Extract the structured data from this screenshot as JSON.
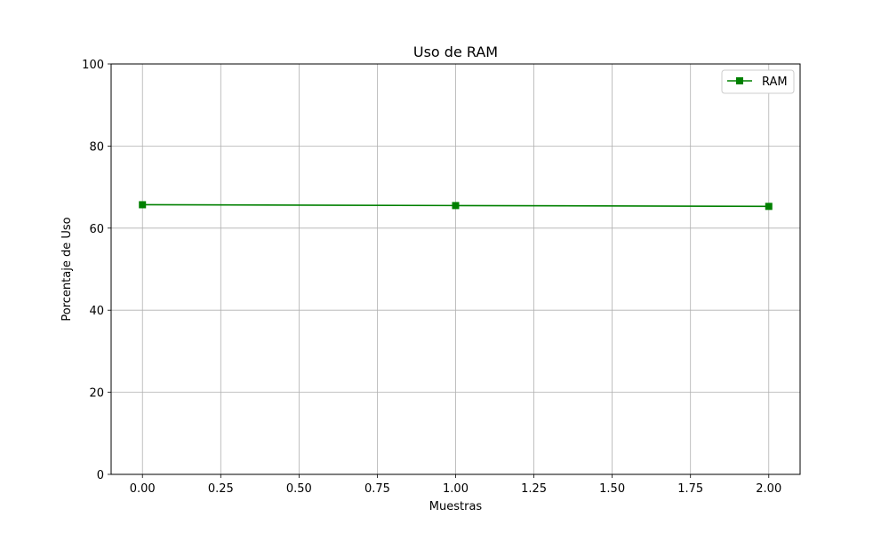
{
  "chart_data": {
    "type": "line",
    "title": "Uso de RAM",
    "xlabel": "Muestras",
    "ylabel": "Porcentaje de Uso",
    "xlim": [
      -0.1,
      2.1
    ],
    "ylim": [
      0,
      100
    ],
    "xticks": [
      "0.00",
      "0.25",
      "0.50",
      "0.75",
      "1.00",
      "1.25",
      "1.50",
      "1.75",
      "2.00"
    ],
    "yticks": [
      "0",
      "20",
      "40",
      "60",
      "80",
      "100"
    ],
    "grid": true,
    "legend_position": "top-right",
    "series": [
      {
        "name": "RAM",
        "color": "#008000",
        "marker": "square",
        "x": [
          0,
          1,
          2
        ],
        "y": [
          65.7,
          65.5,
          65.3
        ]
      }
    ]
  }
}
